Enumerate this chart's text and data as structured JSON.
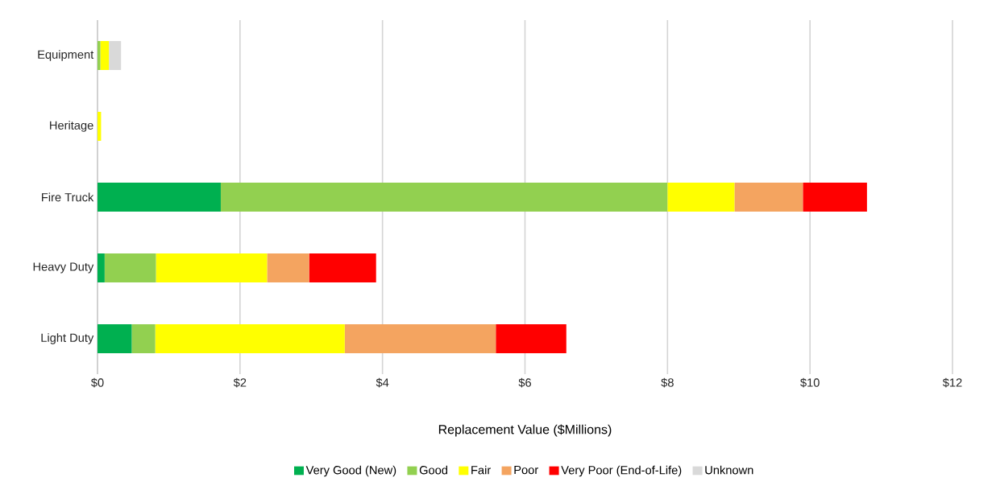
{
  "chart_data": {
    "type": "bar",
    "orientation": "horizontal",
    "stacked": true,
    "xlabel": "Replacement Value ($Millions)",
    "categories": [
      "Equipment",
      "Heritage",
      "Fire Truck",
      "Heavy Duty",
      "Light Duty"
    ],
    "series": [
      {
        "name": "Very Good (New)",
        "color": "#00b050",
        "values": [
          null,
          null,
          1.73,
          0.1,
          0.48
        ]
      },
      {
        "name": "Good",
        "color": "#92d050",
        "values": [
          0.04,
          null,
          6.27,
          0.72,
          0.33
        ]
      },
      {
        "name": "Fair",
        "color": "#ffff00",
        "values": [
          0.12,
          0.05,
          0.94,
          1.56,
          2.66
        ]
      },
      {
        "name": "Poor",
        "color": "#f4a460",
        "values": [
          null,
          null,
          0.96,
          0.59,
          2.12
        ]
      },
      {
        "name": "Very Poor (End-of-Life)",
        "color": "#ff0000",
        "values": [
          null,
          null,
          0.9,
          0.94,
          0.99
        ]
      },
      {
        "name": "Unknown",
        "color": "#d9d9d9",
        "values": [
          0.17,
          null,
          null,
          null,
          null
        ]
      }
    ],
    "xlim": [
      0,
      12
    ],
    "xticks": [
      {
        "value": 0,
        "label": "$0"
      },
      {
        "value": 2,
        "label": "$2"
      },
      {
        "value": 4,
        "label": "$4"
      },
      {
        "value": 6,
        "label": "$6"
      },
      {
        "value": 8,
        "label": "$8"
      },
      {
        "value": 10,
        "label": "$10"
      },
      {
        "value": 12,
        "label": "$12"
      }
    ],
    "grid": "x",
    "legend": "bottom"
  }
}
